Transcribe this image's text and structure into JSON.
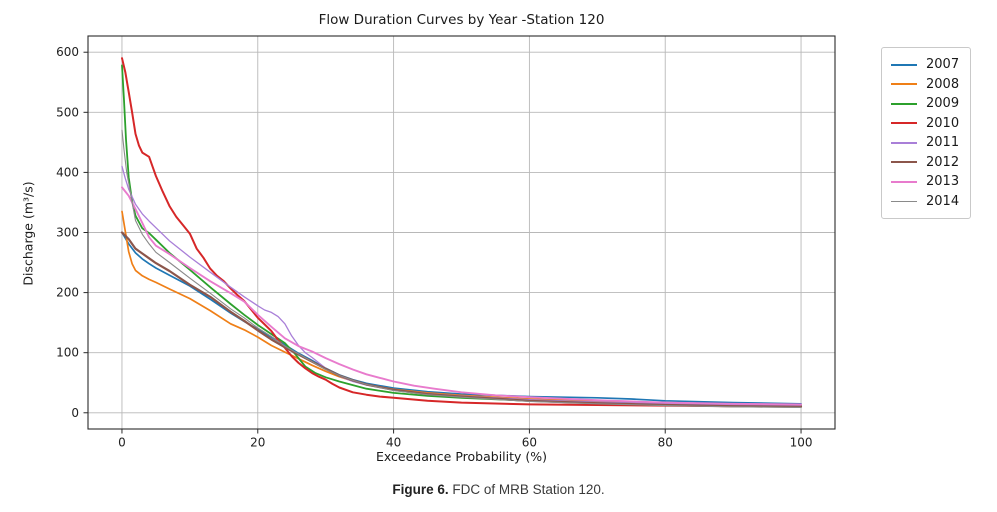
{
  "figure": {
    "title": "Flow Duration Curves by Year -Station 120",
    "xlabel": "Exceedance Probability (%)",
    "ylabel": "Discharge (m³/s)",
    "caption_bold": "Figure 6.",
    "caption_text": " FDC of MRB Station 120."
  },
  "chart_data": {
    "type": "line",
    "title": "Flow Duration Curves by Year -Station 120",
    "xlabel": "Exceedance Probability (%)",
    "ylabel": "Discharge (m³/s)",
    "xlim": [
      -5,
      105
    ],
    "ylim": [
      -27,
      627
    ],
    "x_ticks": [
      0,
      20,
      40,
      60,
      80,
      100
    ],
    "y_ticks": [
      0,
      100,
      200,
      300,
      400,
      500,
      600
    ],
    "grid": true,
    "grid_color": "#b8b8b8",
    "frame_color": "#2b2b2b",
    "legend_position": "outside-right",
    "series": [
      {
        "name": "2007",
        "color": "#1f77b4",
        "width": 1.7,
        "points": [
          [
            0,
            300
          ],
          [
            1,
            281
          ],
          [
            2,
            266
          ],
          [
            3,
            256
          ],
          [
            4,
            248
          ],
          [
            5,
            241
          ],
          [
            7,
            229
          ],
          [
            10,
            211
          ],
          [
            13,
            189
          ],
          [
            16,
            166
          ],
          [
            18,
            152
          ],
          [
            20,
            139
          ],
          [
            22,
            126
          ],
          [
            24,
            113
          ],
          [
            26,
            99
          ],
          [
            28,
            87
          ],
          [
            30,
            74
          ],
          [
            32,
            63
          ],
          [
            34,
            55
          ],
          [
            36,
            49
          ],
          [
            40,
            41
          ],
          [
            45,
            35
          ],
          [
            50,
            31
          ],
          [
            55,
            29
          ],
          [
            60,
            27
          ],
          [
            65,
            26
          ],
          [
            70,
            25
          ],
          [
            75,
            23
          ],
          [
            80,
            20
          ],
          [
            90,
            17
          ],
          [
            100,
            15
          ]
        ]
      },
      {
        "name": "2008",
        "color": "#ef7f17",
        "width": 1.7,
        "points": [
          [
            0,
            335
          ],
          [
            0.5,
            302
          ],
          [
            1,
            268
          ],
          [
            1.5,
            248
          ],
          [
            2,
            237
          ],
          [
            3,
            228
          ],
          [
            4,
            222
          ],
          [
            5,
            217
          ],
          [
            7,
            206
          ],
          [
            10,
            190
          ],
          [
            13,
            170
          ],
          [
            16,
            148
          ],
          [
            18,
            138
          ],
          [
            20,
            126
          ],
          [
            22,
            112
          ],
          [
            24,
            101
          ],
          [
            26,
            90
          ],
          [
            28,
            79
          ],
          [
            30,
            69
          ],
          [
            32,
            60
          ],
          [
            34,
            53
          ],
          [
            36,
            47
          ],
          [
            40,
            39
          ],
          [
            45,
            33
          ],
          [
            50,
            29
          ],
          [
            55,
            26
          ],
          [
            60,
            23
          ],
          [
            70,
            19
          ],
          [
            80,
            16
          ],
          [
            90,
            14
          ],
          [
            100,
            13
          ]
        ]
      },
      {
        "name": "2009",
        "color": "#2ca02c",
        "width": 1.8,
        "points": [
          [
            0,
            578
          ],
          [
            0.3,
            520
          ],
          [
            0.6,
            455
          ],
          [
            1,
            392
          ],
          [
            1.5,
            352
          ],
          [
            2,
            328
          ],
          [
            3,
            307
          ],
          [
            4,
            299
          ],
          [
            5,
            288
          ],
          [
            7,
            266
          ],
          [
            10,
            238
          ],
          [
            13,
            209
          ],
          [
            16,
            181
          ],
          [
            18,
            163
          ],
          [
            20,
            146
          ],
          [
            22,
            131
          ],
          [
            24,
            116
          ],
          [
            25.5,
            98
          ],
          [
            27,
            77
          ],
          [
            28.5,
            66
          ],
          [
            30,
            59
          ],
          [
            32,
            52
          ],
          [
            34,
            46
          ],
          [
            36,
            40
          ],
          [
            40,
            33
          ],
          [
            45,
            28
          ],
          [
            50,
            25
          ],
          [
            60,
            20
          ],
          [
            70,
            17
          ],
          [
            80,
            15
          ],
          [
            90,
            13
          ],
          [
            100,
            12
          ]
        ]
      },
      {
        "name": "2010",
        "color": "#d62728",
        "width": 2.0,
        "points": [
          [
            0,
            590
          ],
          [
            0.5,
            567
          ],
          [
            1,
            534
          ],
          [
            1.5,
            500
          ],
          [
            2,
            464
          ],
          [
            2.5,
            445
          ],
          [
            3,
            433
          ],
          [
            4,
            426
          ],
          [
            4.5,
            410
          ],
          [
            5,
            394
          ],
          [
            6,
            368
          ],
          [
            7,
            344
          ],
          [
            8,
            326
          ],
          [
            9,
            312
          ],
          [
            10,
            298
          ],
          [
            11,
            273
          ],
          [
            12,
            258
          ],
          [
            13,
            240
          ],
          [
            14,
            228
          ],
          [
            15,
            219
          ],
          [
            16,
            207
          ],
          [
            17,
            196
          ],
          [
            18,
            186
          ],
          [
            19,
            172
          ],
          [
            20,
            158
          ],
          [
            21,
            147
          ],
          [
            22,
            136
          ],
          [
            23,
            121
          ],
          [
            24,
            108
          ],
          [
            25,
            94
          ],
          [
            26,
            83
          ],
          [
            27,
            74
          ],
          [
            28,
            66
          ],
          [
            29,
            60
          ],
          [
            30,
            55
          ],
          [
            31,
            48
          ],
          [
            32,
            42
          ],
          [
            34,
            34
          ],
          [
            36,
            30
          ],
          [
            38,
            27
          ],
          [
            40,
            25
          ],
          [
            45,
            20
          ],
          [
            50,
            17
          ],
          [
            60,
            14
          ],
          [
            70,
            13
          ],
          [
            80,
            12
          ],
          [
            90,
            11
          ],
          [
            100,
            11
          ]
        ]
      },
      {
        "name": "2011",
        "color": "#a97fd8",
        "width": 1.3,
        "points": [
          [
            0,
            410
          ],
          [
            0.5,
            390
          ],
          [
            1,
            372
          ],
          [
            2,
            347
          ],
          [
            3,
            331
          ],
          [
            4,
            319
          ],
          [
            5,
            308
          ],
          [
            7,
            286
          ],
          [
            10,
            259
          ],
          [
            13,
            234
          ],
          [
            16,
            209
          ],
          [
            18,
            193
          ],
          [
            20,
            178
          ],
          [
            21,
            171
          ],
          [
            22,
            167
          ],
          [
            23,
            160
          ],
          [
            24,
            148
          ],
          [
            25,
            128
          ],
          [
            26,
            112
          ],
          [
            27,
            100
          ],
          [
            28,
            92
          ],
          [
            30,
            74
          ],
          [
            32,
            61
          ],
          [
            34,
            52
          ],
          [
            36,
            46
          ],
          [
            40,
            38
          ],
          [
            45,
            32
          ],
          [
            50,
            28
          ],
          [
            60,
            22
          ],
          [
            70,
            18
          ],
          [
            80,
            15
          ],
          [
            90,
            13
          ],
          [
            100,
            12
          ]
        ]
      },
      {
        "name": "2012",
        "color": "#8c564b",
        "width": 2.2,
        "points": [
          [
            0,
            300
          ],
          [
            1,
            289
          ],
          [
            2,
            273
          ],
          [
            3,
            265
          ],
          [
            4,
            257
          ],
          [
            5,
            249
          ],
          [
            7,
            236
          ],
          [
            10,
            213
          ],
          [
            13,
            193
          ],
          [
            16,
            168
          ],
          [
            18,
            153
          ],
          [
            20,
            137
          ],
          [
            22,
            122
          ],
          [
            24,
            109
          ],
          [
            26,
            97
          ],
          [
            28,
            85
          ],
          [
            30,
            73
          ],
          [
            32,
            62
          ],
          [
            34,
            54
          ],
          [
            36,
            47
          ],
          [
            40,
            38
          ],
          [
            45,
            31
          ],
          [
            50,
            27
          ],
          [
            60,
            20
          ],
          [
            70,
            16
          ],
          [
            80,
            13
          ],
          [
            90,
            11
          ],
          [
            100,
            10
          ]
        ]
      },
      {
        "name": "2013",
        "color": "#e87bcd",
        "width": 1.9,
        "points": [
          [
            0,
            375
          ],
          [
            1,
            361
          ],
          [
            2,
            339
          ],
          [
            3,
            316
          ],
          [
            4,
            292
          ],
          [
            5,
            278
          ],
          [
            7,
            264
          ],
          [
            10,
            241
          ],
          [
            13,
            219
          ],
          [
            16,
            199
          ],
          [
            18,
            185
          ],
          [
            20,
            163
          ],
          [
            22,
            143
          ],
          [
            24,
            124
          ],
          [
            26,
            111
          ],
          [
            28,
            102
          ],
          [
            30,
            91
          ],
          [
            32,
            81
          ],
          [
            34,
            72
          ],
          [
            36,
            64
          ],
          [
            38,
            58
          ],
          [
            40,
            52
          ],
          [
            43,
            45
          ],
          [
            46,
            40
          ],
          [
            50,
            34
          ],
          [
            55,
            29
          ],
          [
            60,
            26
          ],
          [
            70,
            21
          ],
          [
            80,
            17
          ],
          [
            90,
            15
          ],
          [
            100,
            14
          ]
        ]
      },
      {
        "name": "2014",
        "color": "#8a8a8a",
        "width": 1.1,
        "points": [
          [
            0,
            470
          ],
          [
            0.3,
            438
          ],
          [
            0.7,
            400
          ],
          [
            1,
            382
          ],
          [
            1.5,
            350
          ],
          [
            2,
            320
          ],
          [
            3,
            297
          ],
          [
            4,
            281
          ],
          [
            5,
            267
          ],
          [
            7,
            250
          ],
          [
            10,
            224
          ],
          [
            13,
            199
          ],
          [
            16,
            173
          ],
          [
            18,
            158
          ],
          [
            20,
            141
          ],
          [
            22,
            127
          ],
          [
            24,
            111
          ],
          [
            26,
            98
          ],
          [
            28,
            85
          ],
          [
            30,
            72
          ],
          [
            32,
            62
          ],
          [
            34,
            54
          ],
          [
            36,
            47
          ],
          [
            40,
            37
          ],
          [
            45,
            30
          ],
          [
            50,
            26
          ],
          [
            60,
            19
          ],
          [
            70,
            15
          ],
          [
            80,
            12
          ],
          [
            90,
            10
          ],
          [
            100,
            9
          ]
        ]
      }
    ]
  }
}
